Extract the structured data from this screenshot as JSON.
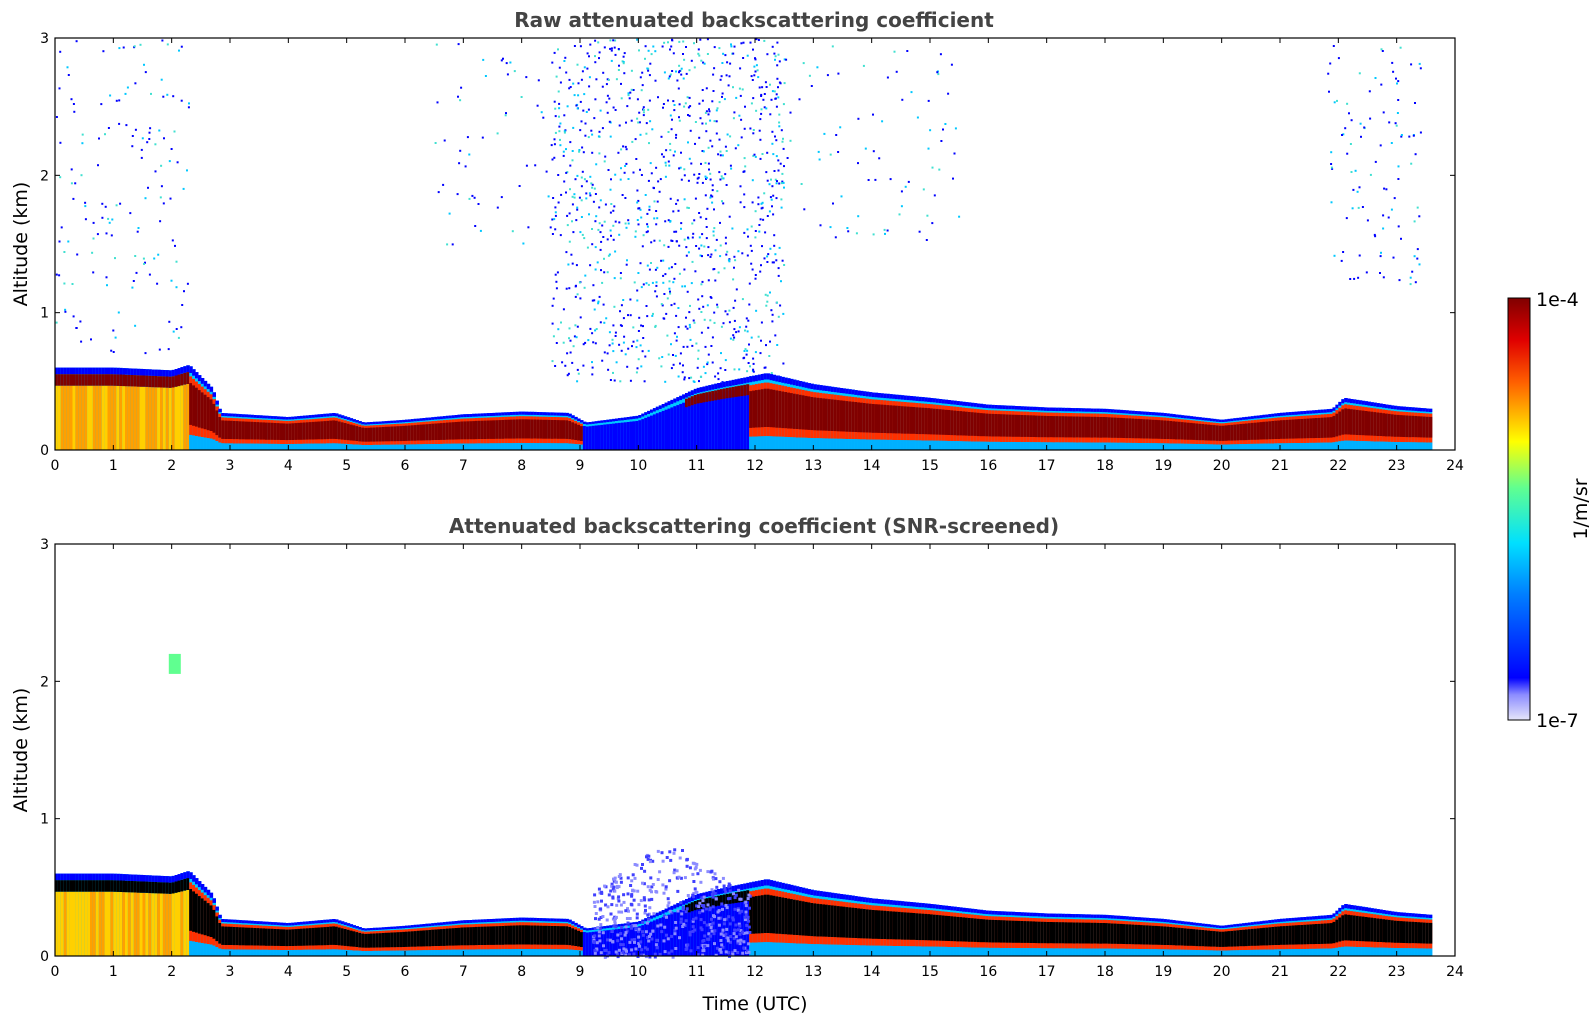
{
  "chart_data": [
    {
      "type": "heatmap",
      "title": "Raw attenuated backscattering coefficient",
      "xlabel": "",
      "ylabel": "Altitude (km)",
      "xlim": [
        0,
        24
      ],
      "ylim": [
        0,
        3
      ],
      "xticks": [
        "0",
        "1",
        "2",
        "3",
        "4",
        "5",
        "6",
        "7",
        "8",
        "9",
        "10",
        "11",
        "12",
        "13",
        "14",
        "15",
        "16",
        "17",
        "18",
        "19",
        "20",
        "21",
        "22",
        "23",
        "24"
      ],
      "yticks": [
        "0",
        "1",
        "2",
        "3"
      ],
      "grid": false,
      "screened": false,
      "boundary_layer_top_km": [
        [
          0,
          0.6
        ],
        [
          1,
          0.6
        ],
        [
          2,
          0.58
        ],
        [
          2.3,
          0.62
        ],
        [
          2.7,
          0.45
        ],
        [
          2.85,
          0.27
        ],
        [
          4,
          0.24
        ],
        [
          4.8,
          0.27
        ],
        [
          5.3,
          0.2
        ],
        [
          6,
          0.22
        ],
        [
          7,
          0.26
        ],
        [
          8,
          0.28
        ],
        [
          8.8,
          0.27
        ],
        [
          9.1,
          0.2
        ],
        [
          10,
          0.25
        ],
        [
          11,
          0.45
        ],
        [
          11.5,
          0.5
        ],
        [
          12.2,
          0.56
        ],
        [
          13,
          0.48
        ],
        [
          14,
          0.42
        ],
        [
          15,
          0.38
        ],
        [
          16,
          0.33
        ],
        [
          17,
          0.31
        ],
        [
          18,
          0.3
        ],
        [
          19,
          0.27
        ],
        [
          20,
          0.22
        ],
        [
          21,
          0.27
        ],
        [
          21.9,
          0.3
        ],
        [
          22.1,
          0.38
        ],
        [
          23,
          0.32
        ],
        [
          23.6,
          0.3
        ]
      ],
      "noise_regions": [
        {
          "t0": 0,
          "t1": 2.3,
          "z0": 0.7,
          "z1": 3,
          "density": 0.1
        },
        {
          "t0": 8.5,
          "t1": 12.5,
          "z0": 0.5,
          "z1": 3,
          "density": 0.35
        },
        {
          "t0": 6.5,
          "t1": 15.5,
          "z0": 1.5,
          "z1": 3,
          "density": 0.06
        },
        {
          "t0": 21.8,
          "t1": 23.4,
          "z0": 1.2,
          "z1": 3,
          "density": 0.12
        }
      ],
      "colors": {
        "max": "#800000",
        "mid": "#ffff00",
        "min": "#e6e6fa",
        "low_cloud": "#0000ff"
      }
    },
    {
      "type": "heatmap",
      "title": "Attenuated backscattering coefficient (SNR-screened)",
      "xlabel": "Time (UTC)",
      "ylabel": "Altitude (km)",
      "xlim": [
        0,
        24
      ],
      "ylim": [
        0,
        3
      ],
      "xticks": [
        "0",
        "1",
        "2",
        "3",
        "4",
        "5",
        "6",
        "7",
        "8",
        "9",
        "10",
        "11",
        "12",
        "13",
        "14",
        "15",
        "16",
        "17",
        "18",
        "19",
        "20",
        "21",
        "22",
        "23",
        "24"
      ],
      "yticks": [
        "0",
        "1",
        "2",
        "3"
      ],
      "grid": false,
      "screened": true,
      "boundary_layer_top_km": [
        [
          0,
          0.6
        ],
        [
          1,
          0.6
        ],
        [
          2,
          0.58
        ],
        [
          2.3,
          0.62
        ],
        [
          2.7,
          0.45
        ],
        [
          2.85,
          0.27
        ],
        [
          4,
          0.24
        ],
        [
          4.8,
          0.27
        ],
        [
          5.3,
          0.2
        ],
        [
          6,
          0.22
        ],
        [
          7,
          0.26
        ],
        [
          8,
          0.28
        ],
        [
          8.8,
          0.27
        ],
        [
          9.1,
          0.2
        ],
        [
          10,
          0.25
        ],
        [
          11,
          0.45
        ],
        [
          11.5,
          0.5
        ],
        [
          12.2,
          0.56
        ],
        [
          13,
          0.48
        ],
        [
          14,
          0.42
        ],
        [
          15,
          0.38
        ],
        [
          16,
          0.33
        ],
        [
          17,
          0.31
        ],
        [
          18,
          0.3
        ],
        [
          19,
          0.27
        ],
        [
          20,
          0.22
        ],
        [
          21,
          0.27
        ],
        [
          21.9,
          0.3
        ],
        [
          22.1,
          0.38
        ],
        [
          23,
          0.32
        ],
        [
          23.6,
          0.3
        ]
      ],
      "cloud_patches": [
        {
          "t": 2.0,
          "z": 2.1
        }
      ],
      "colors": {
        "max": "#000000",
        "mid": "#ffff00",
        "min": "#e6e6fa",
        "low_cloud": "#0000ff"
      }
    }
  ],
  "colorbar": {
    "max_label": "1e-4",
    "min_label": "1e-7",
    "unit_label": "1/m/sr"
  }
}
